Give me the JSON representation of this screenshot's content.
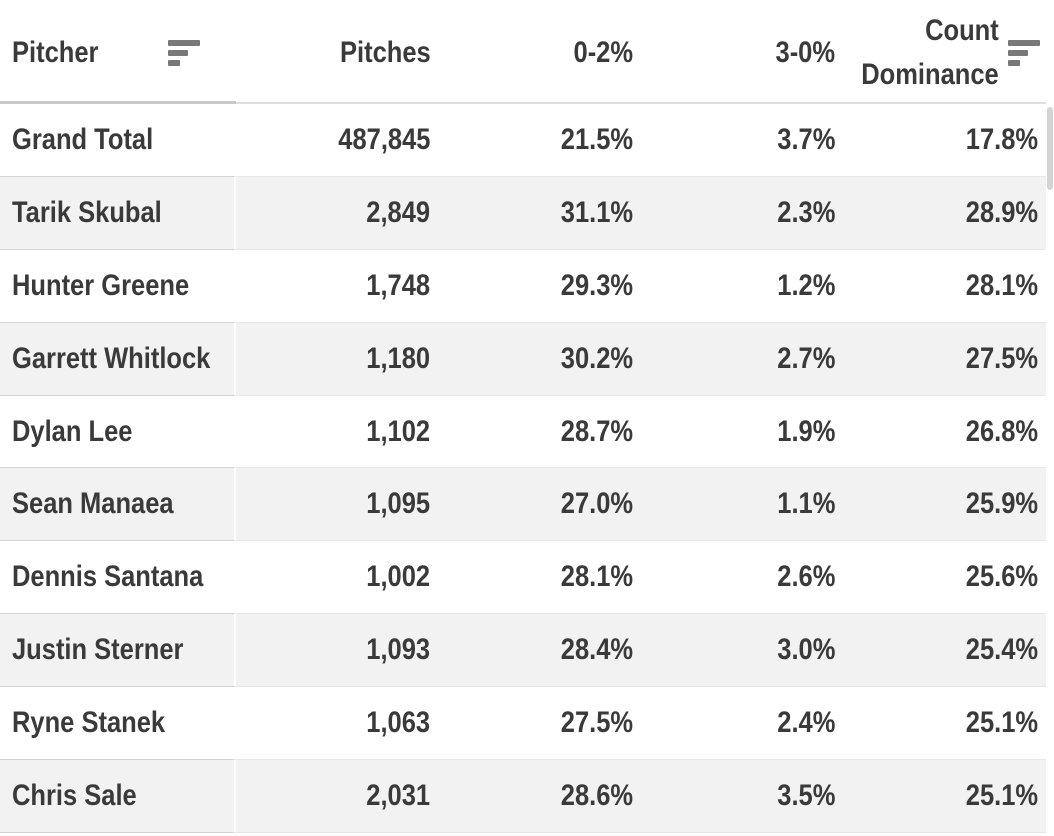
{
  "table": {
    "columns": [
      {
        "label": "Pitcher"
      },
      {
        "label": "Pitches"
      },
      {
        "label": "0-2%"
      },
      {
        "label": "3-0%"
      },
      {
        "label": "Count Dominance",
        "line1": "Count",
        "line2": "Dominance"
      }
    ],
    "rows": [
      {
        "pitcher": "Grand Total",
        "pitches": "487,845",
        "pct_0_2": "21.5%",
        "pct_3_0": "3.7%",
        "count_dominance": "17.8%"
      },
      {
        "pitcher": "Tarik Skubal",
        "pitches": "2,849",
        "pct_0_2": "31.1%",
        "pct_3_0": "2.3%",
        "count_dominance": "28.9%"
      },
      {
        "pitcher": "Hunter Greene",
        "pitches": "1,748",
        "pct_0_2": "29.3%",
        "pct_3_0": "1.2%",
        "count_dominance": "28.1%"
      },
      {
        "pitcher": "Garrett Whitlock",
        "pitches": "1,180",
        "pct_0_2": "30.2%",
        "pct_3_0": "2.7%",
        "count_dominance": "27.5%"
      },
      {
        "pitcher": "Dylan Lee",
        "pitches": "1,102",
        "pct_0_2": "28.7%",
        "pct_3_0": "1.9%",
        "count_dominance": "26.8%"
      },
      {
        "pitcher": "Sean Manaea",
        "pitches": "1,095",
        "pct_0_2": "27.0%",
        "pct_3_0": "1.1%",
        "count_dominance": "25.9%"
      },
      {
        "pitcher": "Dennis Santana",
        "pitches": "1,002",
        "pct_0_2": "28.1%",
        "pct_3_0": "2.6%",
        "count_dominance": "25.6%"
      },
      {
        "pitcher": "Justin Sterner",
        "pitches": "1,093",
        "pct_0_2": "28.4%",
        "pct_3_0": "3.0%",
        "count_dominance": "25.4%"
      },
      {
        "pitcher": "Ryne Stanek",
        "pitches": "1,063",
        "pct_0_2": "27.5%",
        "pct_3_0": "2.4%",
        "count_dominance": "25.1%"
      },
      {
        "pitcher": "Chris Sale",
        "pitches": "2,031",
        "pct_0_2": "28.6%",
        "pct_3_0": "3.5%",
        "count_dominance": "25.1%"
      }
    ]
  },
  "icons": {
    "pitcher_sort": "sort-descending-icon",
    "count_dominance_sort": "sort-descending-icon"
  },
  "colors": {
    "text": "#3a3a3a",
    "row_bg": "#ffffff",
    "row_alt_bg": "#f2f2f2",
    "row_separator": "#e8e8e8",
    "frozen_column_separator": "#d4d4d4",
    "header_border_frozen": "#c9c9c9",
    "header_border": "#dedede",
    "sort_icon": "#787878",
    "scrollbar_thumb": "#d4d4d4"
  },
  "scrollbar": {
    "orientation": "vertical",
    "thumb_at": "top"
  },
  "chart_data": {
    "type": "table",
    "columns": [
      "Pitcher",
      "Pitches",
      "0-2%",
      "3-0%",
      "Count Dominance"
    ],
    "rows": [
      [
        "Grand Total",
        "487,845",
        "21.5%",
        "3.7%",
        "17.8%"
      ],
      [
        "Tarik Skubal",
        "2,849",
        "31.1%",
        "2.3%",
        "28.9%"
      ],
      [
        "Hunter Greene",
        "1,748",
        "29.3%",
        "1.2%",
        "28.1%"
      ],
      [
        "Garrett Whitlock",
        "1,180",
        "30.2%",
        "2.7%",
        "27.5%"
      ],
      [
        "Dylan Lee",
        "1,102",
        "28.7%",
        "1.9%",
        "26.8%"
      ],
      [
        "Sean Manaea",
        "1,095",
        "27.0%",
        "1.1%",
        "25.9%"
      ],
      [
        "Dennis Santana",
        "1,002",
        "28.1%",
        "2.6%",
        "25.6%"
      ],
      [
        "Justin Sterner",
        "1,093",
        "28.4%",
        "3.0%",
        "25.4%"
      ],
      [
        "Ryne Stanek",
        "1,063",
        "27.5%",
        "2.4%",
        "25.1%"
      ],
      [
        "Chris Sale",
        "2,031",
        "28.6%",
        "3.5%",
        "25.1%"
      ]
    ]
  }
}
